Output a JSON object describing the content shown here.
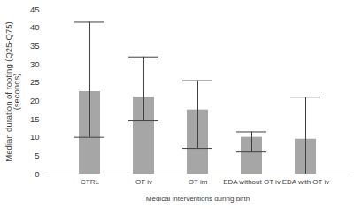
{
  "chart_data": {
    "type": "bar",
    "x_label": "Medical interventions during birth",
    "y_label": "Median duration of rooting (Q25-Q75)\n(seconds)",
    "categories": [
      "CTRL",
      "OT iv",
      "OT im",
      "EDA without OT iv",
      "EDA with OT iv"
    ],
    "values": [
      22.5,
      21,
      17.5,
      10,
      9.5
    ],
    "error_low": [
      10,
      14.5,
      7,
      6,
      0
    ],
    "error_high": [
      41.5,
      32,
      25.5,
      11.5,
      21
    ],
    "color": "#a6a6a6",
    "ylim": [
      0,
      45
    ],
    "yticks": [
      0,
      5,
      10,
      15,
      20,
      25,
      30,
      35,
      40,
      45
    ],
    "grid": false
  }
}
